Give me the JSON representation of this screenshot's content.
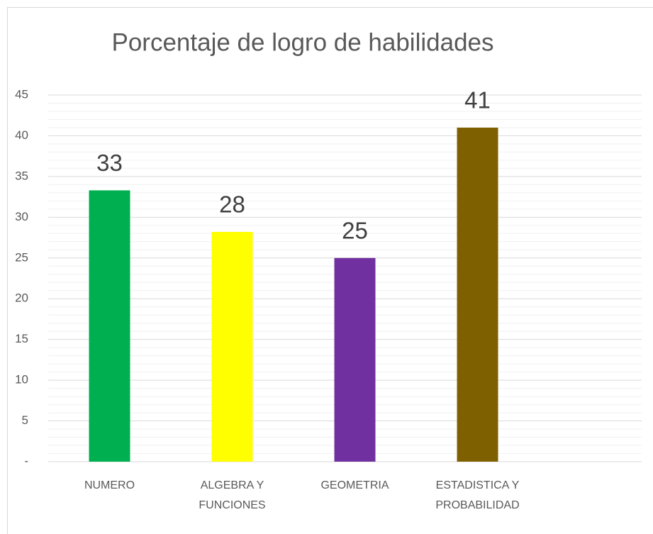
{
  "chart_data": {
    "type": "bar",
    "title": "Porcentaje de logro de habilidades",
    "categories": [
      "NUMERO",
      "ALGEBRA Y FUNCIONES",
      "GEOMETRIA",
      "ESTADISTICA Y PROBABILIDAD"
    ],
    "values": [
      33.3,
      28.2,
      25,
      41
    ],
    "value_labels": [
      "33",
      "28",
      "25",
      "41"
    ],
    "colors": [
      "#00b050",
      "#ffff00",
      "#7030a0",
      "#7f6000"
    ],
    "ylim": [
      0,
      45
    ],
    "yticks": [
      {
        "value": 0,
        "label": "-"
      },
      5,
      10,
      15,
      20,
      25,
      30,
      35,
      40,
      45
    ],
    "grid": true,
    "minor_grid": true
  }
}
